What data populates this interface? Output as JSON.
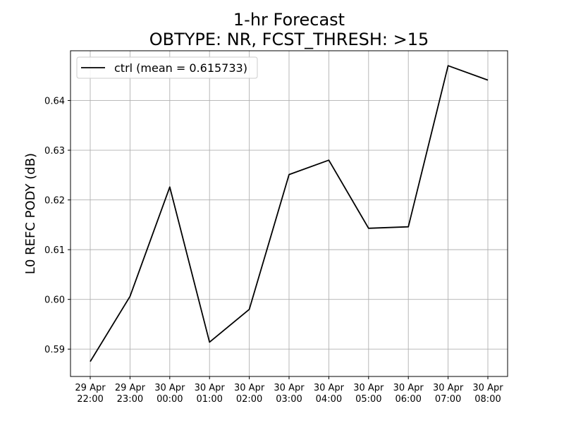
{
  "chart_data": {
    "type": "line",
    "title": "1-hr Forecast",
    "subtitle": "OBTYPE: NR,  FCST_THRESH: >15",
    "xlabel": "",
    "ylabel": "L0 REFC PODY (dB)",
    "categories": [
      [
        "29 Apr",
        "22:00"
      ],
      [
        "29 Apr",
        "23:00"
      ],
      [
        "30 Apr",
        "00:00"
      ],
      [
        "30 Apr",
        "01:00"
      ],
      [
        "30 Apr",
        "02:00"
      ],
      [
        "30 Apr",
        "03:00"
      ],
      [
        "30 Apr",
        "04:00"
      ],
      [
        "30 Apr",
        "05:00"
      ],
      [
        "30 Apr",
        "06:00"
      ],
      [
        "30 Apr",
        "07:00"
      ],
      [
        "30 Apr",
        "08:00"
      ]
    ],
    "series": [
      {
        "name": "ctrl (mean = 0.615733)",
        "color": "#000000",
        "values": [
          0.5875,
          0.6006,
          0.6226,
          0.5914,
          0.598,
          0.6251,
          0.628,
          0.6143,
          0.6146,
          0.647,
          0.6441
        ]
      }
    ],
    "ylim": [
      0.5845,
      0.65
    ],
    "yticks": [
      "0.59",
      "0.60",
      "0.61",
      "0.62",
      "0.63",
      "0.64"
    ],
    "grid": true,
    "legend": "top-left"
  }
}
